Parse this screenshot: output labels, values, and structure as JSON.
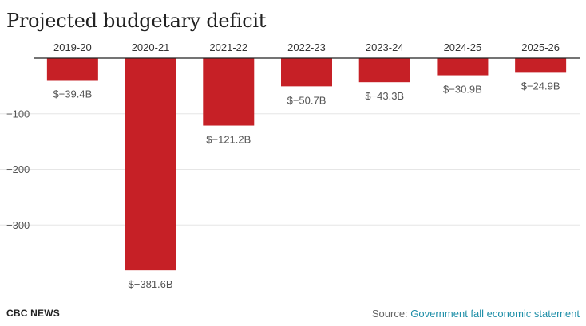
{
  "title": "Projected budgetary deficit",
  "footer": {
    "brand": "CBC NEWS",
    "source_prefix": "Source: ",
    "source_link": "Government fall economic statement"
  },
  "colors": {
    "bar": "#c62026",
    "grid": "#e6e6e6",
    "axis": "#222222",
    "tick": "#555555",
    "label": "#555555"
  },
  "chart_data": {
    "type": "bar",
    "title": "Projected budgetary deficit",
    "xlabel": "",
    "ylabel": "",
    "categories": [
      "2019-20",
      "2020-21",
      "2021-22",
      "2022-23",
      "2023-24",
      "2024-25",
      "2025-26"
    ],
    "values": [
      -39.4,
      -381.6,
      -121.2,
      -50.7,
      -43.3,
      -30.9,
      -24.9
    ],
    "data_labels": [
      "$−39.4B",
      "$−381.6B",
      "$−121.2B",
      "$−50.7B",
      "$−43.3B",
      "$−30.9B",
      "$−24.9B"
    ],
    "y_ticks": [
      -100,
      -200,
      -300
    ],
    "y_tick_labels": [
      "−100",
      "−200",
      "−300"
    ],
    "ylim": [
      -400,
      0
    ],
    "x_axis_position": "top",
    "grid": true
  }
}
